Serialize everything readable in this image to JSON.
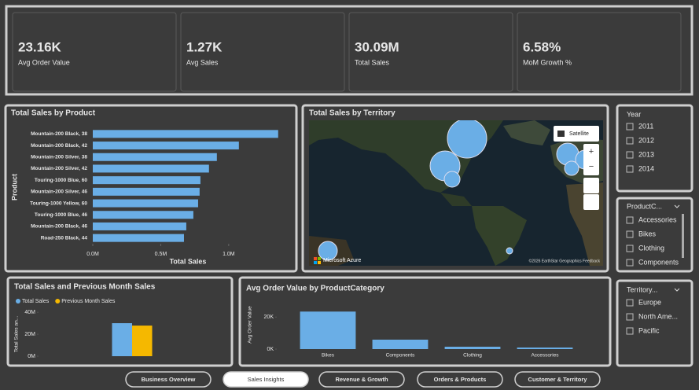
{
  "kpis": [
    {
      "value": "23.16K",
      "label": "Avg Order Value"
    },
    {
      "value": "1.27K",
      "label": "Avg Sales"
    },
    {
      "value": "30.09M",
      "label": "Total Sales"
    },
    {
      "value": "6.58%",
      "label": "MoM Growth %"
    }
  ],
  "map": {
    "title": "Total Sales by Territory",
    "button": "Satellite",
    "attribution": "Microsoft Azure",
    "copyright": "©2026 EarthStar Geographics  Feedback"
  },
  "slicers": [
    {
      "title": "Year",
      "items": [
        "2011",
        "2012",
        "2013",
        "2014"
      ]
    },
    {
      "title": "ProductC...",
      "items": [
        "Accessories",
        "Bikes",
        "Clothing",
        "Components"
      ]
    },
    {
      "title": "Territory...",
      "items": [
        "Europe",
        "North Ame...",
        "Pacific"
      ]
    }
  ],
  "tabs": [
    "Business Overview",
    "Sales Insights",
    "Revenue & Growth",
    "Orders & Products",
    "Customer & Territory"
  ],
  "chart_data": [
    {
      "type": "barh",
      "title": "Total Sales by Product",
      "x_label": "Total Sales",
      "y_label": "Product",
      "categories": [
        "Mountain-200 Black, 38",
        "Mountain-200 Black, 42",
        "Mountain-200 Silver, 38",
        "Mountain-200 Silver, 42",
        "Touring-1000 Blue, 60",
        "Mountain-200 Silver, 46",
        "Touring-1000 Yellow, 60",
        "Touring-1000 Blue, 46",
        "Mountain-200 Black, 46",
        "Road-250 Black, 44"
      ],
      "values": [
        1364000,
        1075000,
        913000,
        855000,
        792000,
        786000,
        775000,
        740000,
        688000,
        671000
      ],
      "color": "#6aaee6",
      "xlim": [
        0,
        1400000
      ],
      "xticks": [
        {
          "value": 0,
          "label": "0.0M"
        },
        {
          "value": 500000,
          "label": "0.5M"
        },
        {
          "value": 1000000,
          "label": "1.0M"
        }
      ]
    },
    {
      "type": "bar",
      "title": "Total Sales and Previous Month Sales",
      "y_label": "Total Sales an...",
      "categories": [
        null
      ],
      "series": [
        {
          "name": "Total Sales",
          "color": "#6aaee6",
          "values": [
            30090000
          ]
        },
        {
          "name": "Previous Month Sales",
          "color": "#f5b800",
          "values": [
            27900000
          ]
        }
      ],
      "ylim": [
        0,
        43000000
      ],
      "yticks": [
        {
          "value": 0,
          "label": "0M"
        },
        {
          "value": 20000000,
          "label": "20M"
        },
        {
          "value": 40000000,
          "label": "40M"
        }
      ]
    },
    {
      "type": "bar",
      "title": "Avg Order Value by ProductCategory",
      "y_label": "Avg Order Value",
      "categories": [
        "Bikes",
        "Components",
        "Clothing",
        "Accessories"
      ],
      "series": [
        {
          "color": "#6aaee6",
          "values": [
            23400,
            5900,
            1500,
            1000
          ]
        }
      ],
      "ylim": [
        0,
        25000
      ],
      "yticks": [
        {
          "value": 0,
          "label": "0K"
        },
        {
          "value": 20000,
          "label": "20K"
        }
      ]
    }
  ]
}
